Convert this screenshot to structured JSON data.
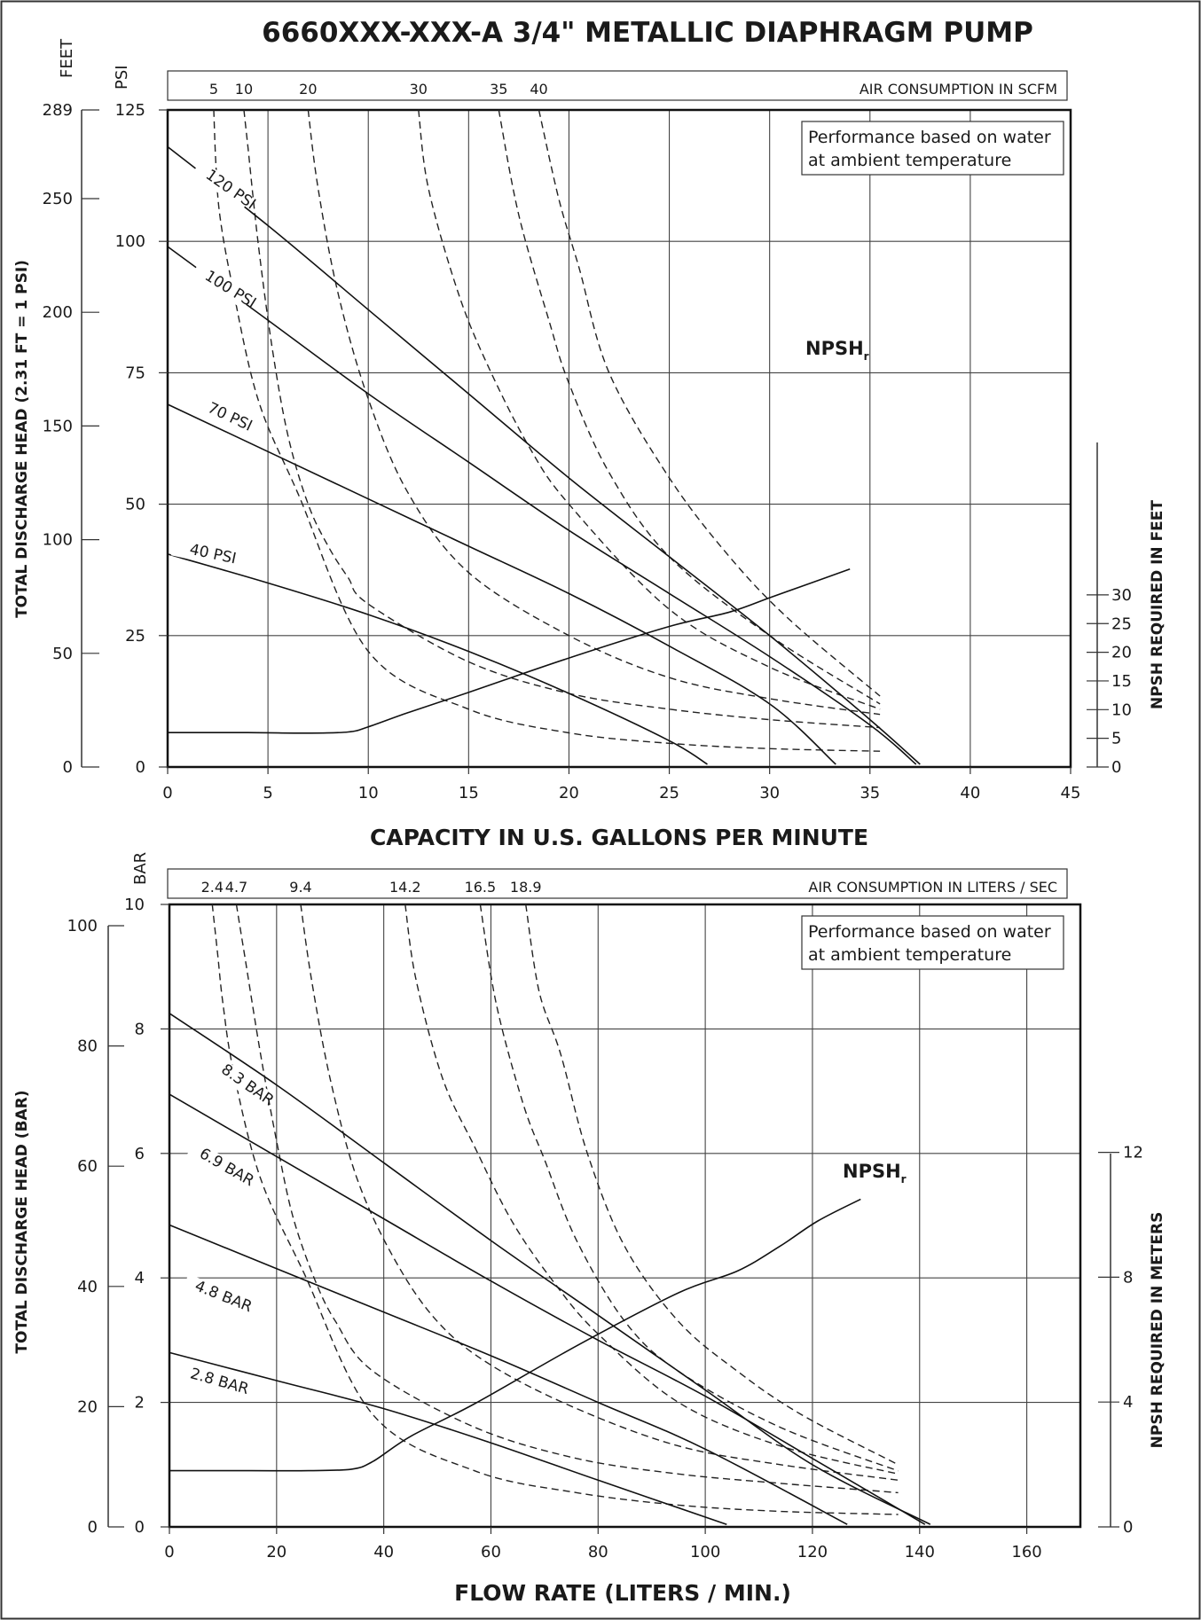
{
  "title": "6660XXX-XXX-A  3/4\" METALLIC DIAPHRAGM PUMP",
  "chart_data": [
    {
      "type": "line",
      "xlabel": "CAPACITY IN U.S. GALLONS PER MINUTE",
      "xlim": [
        0,
        45
      ],
      "x_ticks": [
        "0",
        "5",
        "10",
        "15",
        "20",
        "25",
        "30",
        "35",
        "40",
        "45"
      ],
      "ylim": [
        0,
        125
      ],
      "left_outer_axis": {
        "label": "FEET",
        "ticks": [
          "289",
          "250",
          "200",
          "150",
          "100",
          "50",
          "0"
        ],
        "tick_values": [
          289,
          250,
          200,
          150,
          100,
          50,
          0
        ],
        "title": "TOTAL DISCHARGE HEAD (2.31 FT = 1 PSI)"
      },
      "left_inner_axis": {
        "label": "PSI",
        "ticks": [
          "125",
          "100",
          "75",
          "50",
          "25",
          "0"
        ],
        "tick_values": [
          125,
          100,
          75,
          50,
          25,
          0
        ]
      },
      "right_axis": {
        "label": "NPSH REQUIRED IN FEET",
        "ticks": [
          "30",
          "25",
          "20",
          "15",
          "10",
          "5",
          "0"
        ],
        "tick_values": [
          30,
          25,
          20,
          15,
          10,
          5,
          0
        ]
      },
      "air_axis": {
        "label": "AIR CONSUMPTION IN SCFM",
        "ticks": [
          "5",
          "10",
          "20",
          "30",
          "35",
          "40"
        ]
      },
      "note": [
        "Performance based on water",
        "at ambient temperature"
      ],
      "series": [
        {
          "name": "120 PSI",
          "x": [
            0,
            5,
            10,
            15,
            20,
            25,
            30,
            35,
            37.5
          ],
          "y": [
            118,
            103,
            87,
            71,
            55,
            40,
            25,
            9,
            0.5
          ]
        },
        {
          "name": "100 PSI",
          "x": [
            0,
            5,
            10,
            15,
            20,
            25,
            30,
            35,
            37.3
          ],
          "y": [
            99,
            85,
            71,
            58,
            45,
            33,
            21,
            8,
            0.5
          ]
        },
        {
          "name": "70 PSI",
          "x": [
            0,
            5,
            10,
            15,
            20,
            25,
            30,
            33.3
          ],
          "y": [
            69,
            60,
            51,
            42,
            33,
            23,
            12,
            0.5
          ]
        },
        {
          "name": "40 PSI",
          "x": [
            0,
            5,
            10,
            15,
            20,
            25,
            26.9
          ],
          "y": [
            40.5,
            35,
            29,
            22,
            14,
            5,
            0.5
          ]
        }
      ],
      "air_curves": [
        {
          "x": [
            2.3,
            2.4,
            2.6,
            3.2,
            4.5,
            6.5,
            10,
            15,
            20,
            25,
            30,
            35.5
          ],
          "y": [
            125,
            115,
            105,
            92,
            70,
            52,
            22,
            11,
            6.5,
            4.5,
            3.5,
            3
          ]
        },
        {
          "x": [
            3.8,
            4,
            4.5,
            5.2,
            6,
            7,
            8,
            9,
            10,
            15,
            20,
            25,
            30,
            35.5
          ],
          "y": [
            125,
            118,
            100,
            80,
            63,
            50,
            42,
            36,
            31,
            20,
            14,
            11,
            9,
            7.5
          ]
        },
        {
          "x": [
            7,
            7.5,
            8.5,
            10,
            12,
            15,
            20,
            25,
            30,
            35.5
          ],
          "y": [
            125,
            110,
            90,
            70,
            52,
            37,
            25,
            17,
            13,
            10
          ]
        },
        {
          "x": [
            12.5,
            13,
            14.5,
            16,
            18,
            20,
            25,
            30,
            35.5
          ],
          "y": [
            125,
            110,
            90,
            76,
            61,
            50,
            30,
            19,
            11
          ]
        },
        {
          "x": [
            16.5,
            17.5,
            19,
            20,
            22,
            25,
            30,
            35.5
          ],
          "y": [
            125,
            105,
            85,
            73,
            56,
            40,
            25,
            12
          ]
        },
        {
          "x": [
            18.5,
            19.5,
            20.5,
            22,
            25,
            28,
            31,
            35.5
          ],
          "y": [
            125,
            108,
            95,
            75,
            55,
            40,
            28,
            13.5
          ]
        }
      ],
      "npsh": {
        "label": "NPSH",
        "label_sub": "r",
        "x": [
          0,
          4,
          7,
          9,
          10,
          12,
          15,
          20,
          25,
          28,
          30,
          32,
          34
        ],
        "y_feet": [
          6,
          6,
          5.9,
          6.1,
          7,
          9.5,
          13,
          19,
          24.5,
          27,
          29.5,
          32,
          34.5
        ]
      }
    },
    {
      "type": "line",
      "xlabel": "FLOW RATE (LITERS / MIN.)",
      "xlim": [
        0,
        170
      ],
      "x_ticks": [
        "0",
        "20",
        "40",
        "60",
        "80",
        "100",
        "120",
        "140",
        "160"
      ],
      "ylim": [
        0,
        10
      ],
      "left_outer_axis": {
        "ticks": [
          "100",
          "80",
          "60",
          "40",
          "20",
          "0"
        ],
        "tick_values": [
          100,
          80,
          60,
          40,
          20,
          0
        ],
        "title": "TOTAL DISCHARGE HEAD (BAR)"
      },
      "left_inner_axis": {
        "label": "BAR",
        "ticks": [
          "10",
          "8",
          "6",
          "4",
          "2",
          "0"
        ],
        "tick_values": [
          10,
          8,
          6,
          4,
          2,
          0
        ]
      },
      "right_axis": {
        "label": "NPSH REQUIRED IN METERS",
        "ticks": [
          "12",
          "8",
          "4",
          "0"
        ],
        "tick_values": [
          12,
          8,
          4,
          0
        ]
      },
      "air_axis": {
        "label": "AIR CONSUMPTION IN LITERS / SEC",
        "ticks": [
          "2.4",
          "4.7",
          "9.4",
          "14.2",
          "16.5",
          "18.9"
        ]
      },
      "note": [
        "Performance based on water",
        "at ambient temperature"
      ],
      "series": [
        {
          "name": "8.3 BAR",
          "x": [
            0,
            20,
            40,
            60,
            80,
            100,
            120,
            142
          ],
          "y": [
            8.25,
            7.1,
            5.85,
            4.6,
            3.4,
            2.2,
            1.0,
            0.04
          ]
        },
        {
          "name": "6.9 BAR",
          "x": [
            0,
            20,
            40,
            60,
            80,
            100,
            120,
            141
          ],
          "y": [
            6.95,
            5.95,
            4.95,
            3.95,
            3.0,
            2.1,
            1.1,
            0.04
          ]
        },
        {
          "name": "4.8 BAR",
          "x": [
            0,
            20,
            40,
            60,
            80,
            100,
            126.5
          ],
          "y": [
            4.85,
            4.15,
            3.45,
            2.75,
            2.0,
            1.25,
            0.04
          ]
        },
        {
          "name": "2.8 BAR",
          "x": [
            0,
            20,
            40,
            60,
            80,
            104
          ],
          "y": [
            2.8,
            2.35,
            1.9,
            1.35,
            0.75,
            0.04
          ]
        }
      ],
      "air_curves": [
        {
          "x": [
            8,
            9,
            10,
            12,
            17,
            25,
            38,
            57,
            76,
            95,
            114,
            136
          ],
          "y": [
            10,
            9.2,
            8.4,
            7.3,
            5.6,
            4.1,
            1.8,
            0.9,
            0.55,
            0.35,
            0.25,
            0.2
          ]
        },
        {
          "x": [
            12.5,
            14,
            17,
            20,
            23,
            27,
            31,
            38,
            57,
            76,
            95,
            114,
            136
          ],
          "y": [
            10,
            9.2,
            7.6,
            6.2,
            5.0,
            4.0,
            3.3,
            2.5,
            1.6,
            1.1,
            0.85,
            0.7,
            0.55
          ]
        },
        {
          "x": [
            24.5,
            26.5,
            30,
            35,
            42,
            50,
            60,
            76,
            95,
            114,
            136
          ],
          "y": [
            10,
            8.8,
            7.2,
            5.6,
            4.3,
            3.3,
            2.6,
            1.9,
            1.3,
            1.0,
            0.75
          ]
        },
        {
          "x": [
            44,
            46,
            51,
            57,
            64,
            72,
            80,
            95,
            114,
            136
          ],
          "y": [
            10,
            8.8,
            7.2,
            6.1,
            4.9,
            3.9,
            3.1,
            2.0,
            1.3,
            0.85
          ]
        },
        {
          "x": [
            58,
            61,
            66,
            70,
            76,
            85,
            95,
            114,
            136
          ],
          "y": [
            10,
            8.4,
            6.8,
            5.9,
            4.6,
            3.3,
            2.5,
            1.6,
            0.9
          ]
        },
        {
          "x": [
            66.5,
            69,
            73,
            78,
            85,
            95,
            106,
            118,
            136
          ],
          "y": [
            10,
            8.6,
            7.6,
            6.0,
            4.5,
            3.3,
            2.5,
            1.8,
            1.0
          ]
        }
      ],
      "npsh": {
        "label": "NPSH",
        "label_sub": "r",
        "x": [
          0,
          15,
          26,
          34,
          38,
          45,
          57,
          76,
          95,
          106,
          114,
          121,
          129
        ],
        "y_meters": [
          1.8,
          1.8,
          1.8,
          1.85,
          2.1,
          2.9,
          3.95,
          5.8,
          7.5,
          8.2,
          9.0,
          9.8,
          10.5
        ]
      }
    }
  ]
}
